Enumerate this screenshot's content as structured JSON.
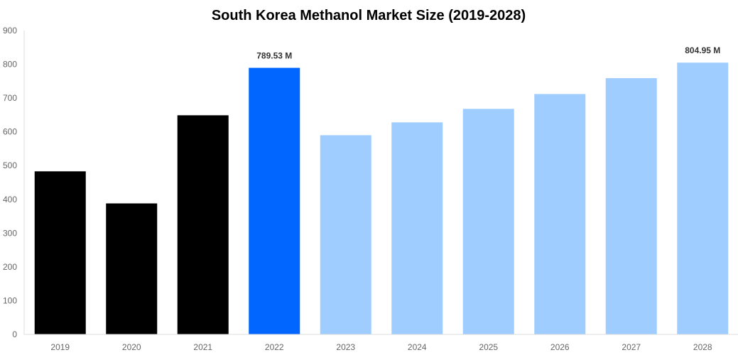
{
  "chart_data": {
    "type": "bar",
    "title": "South Korea Methanol Market Size (2019-2028)",
    "xlabel": "",
    "ylabel": "",
    "categories": [
      "2019",
      "2020",
      "2021",
      "2022",
      "2023",
      "2024",
      "2025",
      "2026",
      "2027",
      "2028"
    ],
    "values": [
      483,
      388,
      649,
      789.53,
      590,
      628,
      668,
      712,
      759,
      804.95
    ],
    "colors": [
      "#000000",
      "#000000",
      "#000000",
      "#0066ff",
      "#a0cdff",
      "#a0cdff",
      "#a0cdff",
      "#a0cdff",
      "#a0cdff",
      "#a0cdff"
    ],
    "data_labels": {
      "3": "789.53 M",
      "9": "804.95 M"
    },
    "ylim": [
      0,
      900
    ],
    "yticks": [
      0,
      100,
      200,
      300,
      400,
      500,
      600,
      700,
      800,
      900
    ],
    "grid": false,
    "legend": "none"
  }
}
